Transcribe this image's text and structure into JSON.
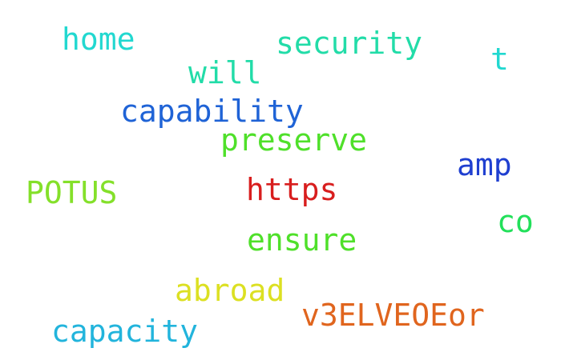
{
  "words": [
    {
      "text": "home",
      "color": "#22d8d0"
    },
    {
      "text": "security",
      "color": "#22dca8"
    },
    {
      "text": "t",
      "color": "#22d8d0"
    },
    {
      "text": "will",
      "color": "#22dca8"
    },
    {
      "text": "capability",
      "color": "#1f63d6"
    },
    {
      "text": "preserve",
      "color": "#4fe02a"
    },
    {
      "text": "amp",
      "color": "#1f3fd0"
    },
    {
      "text": "https",
      "color": "#d81e1e"
    },
    {
      "text": "POTUS",
      "color": "#84e02a"
    },
    {
      "text": "co",
      "color": "#22e05a"
    },
    {
      "text": "ensure",
      "color": "#4fe02a"
    },
    {
      "text": "abroad",
      "color": "#dce022"
    },
    {
      "text": "v3ELVEOEor",
      "color": "#e0651e"
    },
    {
      "text": "capacity",
      "color": "#22b4dc"
    }
  ]
}
